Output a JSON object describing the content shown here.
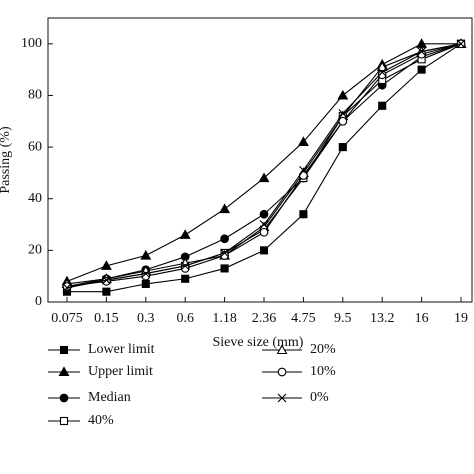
{
  "chart_data": {
    "type": "line",
    "x_label": "Sieve size (mm)",
    "y_label": "Passing (%)",
    "categories": [
      "0.075",
      "0.15",
      "0.3",
      "0.6",
      "1.18",
      "2.36",
      "4.75",
      "9.5",
      "13.2",
      "16",
      "19"
    ],
    "ylim": [
      0,
      110
    ],
    "yticks": [
      0,
      20,
      40,
      60,
      80,
      100
    ],
    "series": [
      {
        "name": "Lower limit",
        "color": "#000000",
        "marker": "square",
        "filled": true,
        "values": [
          4,
          4,
          7,
          9,
          13,
          20,
          34,
          60,
          76,
          90,
          100
        ]
      },
      {
        "name": "Upper limit",
        "color": "#000000",
        "marker": "triangle",
        "filled": true,
        "values": [
          8,
          14,
          18,
          26,
          36,
          48,
          62,
          80,
          92,
          100,
          100
        ]
      },
      {
        "name": "Median",
        "color": "#000000",
        "marker": "circle",
        "filled": true,
        "values": [
          6,
          9,
          12.5,
          17.5,
          24.5,
          34,
          48,
          70,
          84,
          95,
          100
        ]
      },
      {
        "name": "40%",
        "color": "#000000",
        "marker": "square",
        "filled": false,
        "values": [
          6,
          8.5,
          11,
          14,
          19,
          28,
          48,
          72,
          86,
          94,
          100
        ]
      },
      {
        "name": "20%",
        "color": "#000000",
        "marker": "triangle",
        "filled": false,
        "values": [
          7,
          9,
          12,
          15,
          18,
          29,
          50,
          72,
          91,
          97,
          100
        ]
      },
      {
        "name": "10%",
        "color": "#000000",
        "marker": "circle",
        "filled": false,
        "values": [
          6,
          8,
          10,
          13,
          18,
          27,
          49,
          70,
          88,
          96,
          100
        ]
      },
      {
        "name": "0%",
        "color": "#000000",
        "marker": "cross",
        "filled": false,
        "values": [
          5.5,
          8.5,
          11,
          14,
          19,
          30,
          51,
          73,
          89,
          97,
          100
        ]
      }
    ]
  }
}
